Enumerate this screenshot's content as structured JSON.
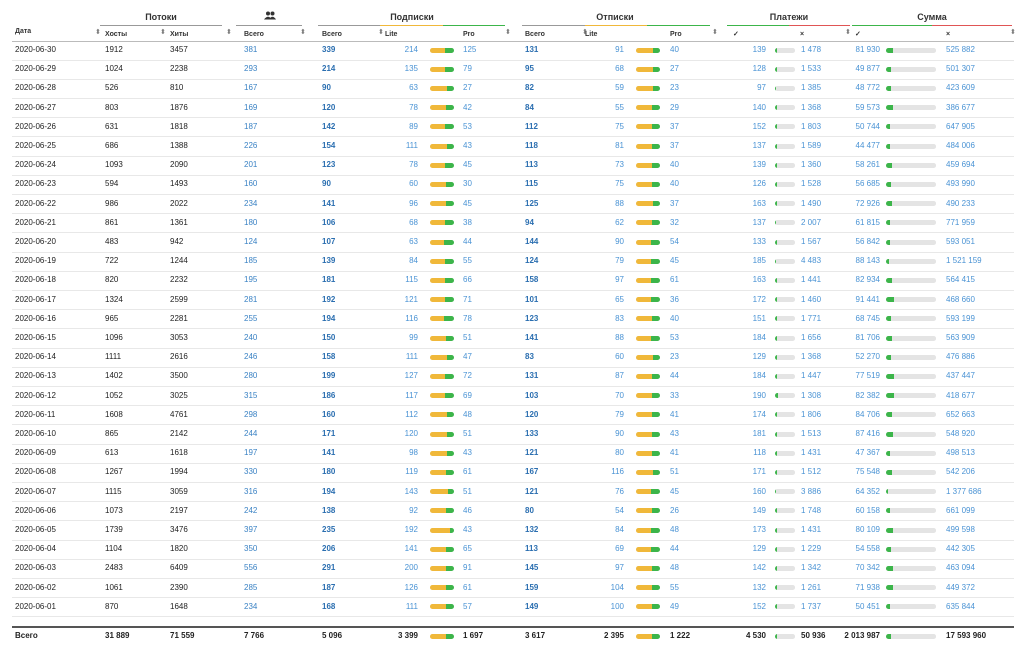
{
  "header": {
    "groups": [
      "Потоки",
      "Подписки",
      "Отписки",
      "Платежи",
      "Сумма"
    ],
    "columns": [
      "Дата",
      "Хосты",
      "Хиты",
      "Всего",
      "Всего",
      "Lite",
      "Pro",
      "Всего",
      "Lite",
      "Pro",
      "✓",
      "×",
      "✓",
      "×"
    ]
  },
  "table": {
    "rows": [
      [
        "2020-06-30",
        "1912",
        "3457",
        "381",
        "339",
        "214",
        "125",
        "131",
        "91",
        "40",
        "139",
        "1 478",
        "81 930",
        "525 882"
      ],
      [
        "2020-06-29",
        "1024",
        "2238",
        "293",
        "214",
        "135",
        "79",
        "95",
        "68",
        "27",
        "128",
        "1 533",
        "49 877",
        "501 307"
      ],
      [
        "2020-06-28",
        "526",
        "810",
        "167",
        "90",
        "63",
        "27",
        "82",
        "59",
        "23",
        "97",
        "1 385",
        "48 772",
        "423 609"
      ],
      [
        "2020-06-27",
        "803",
        "1876",
        "169",
        "120",
        "78",
        "42",
        "84",
        "55",
        "29",
        "140",
        "1 368",
        "59 573",
        "386 677"
      ],
      [
        "2020-06-26",
        "631",
        "1818",
        "187",
        "142",
        "89",
        "53",
        "112",
        "75",
        "37",
        "152",
        "1 803",
        "50 744",
        "647 905"
      ],
      [
        "2020-06-25",
        "686",
        "1388",
        "226",
        "154",
        "111",
        "43",
        "118",
        "81",
        "37",
        "137",
        "1 589",
        "44 477",
        "484 006"
      ],
      [
        "2020-06-24",
        "1093",
        "2090",
        "201",
        "123",
        "78",
        "45",
        "113",
        "73",
        "40",
        "139",
        "1 360",
        "58 261",
        "459 694"
      ],
      [
        "2020-06-23",
        "594",
        "1493",
        "160",
        "90",
        "60",
        "30",
        "115",
        "75",
        "40",
        "126",
        "1 528",
        "56 685",
        "493 990"
      ],
      [
        "2020-06-22",
        "986",
        "2022",
        "234",
        "141",
        "96",
        "45",
        "125",
        "88",
        "37",
        "163",
        "1 490",
        "72 926",
        "490 233"
      ],
      [
        "2020-06-21",
        "861",
        "1361",
        "180",
        "106",
        "68",
        "38",
        "94",
        "62",
        "32",
        "137",
        "2 007",
        "61 815",
        "771 959"
      ],
      [
        "2020-06-20",
        "483",
        "942",
        "124",
        "107",
        "63",
        "44",
        "144",
        "90",
        "54",
        "133",
        "1 567",
        "56 842",
        "593 051"
      ],
      [
        "2020-06-19",
        "722",
        "1244",
        "185",
        "139",
        "84",
        "55",
        "124",
        "79",
        "45",
        "185",
        "4 483",
        "88 143",
        "1 521 159"
      ],
      [
        "2020-06-18",
        "820",
        "2232",
        "195",
        "181",
        "115",
        "66",
        "158",
        "97",
        "61",
        "163",
        "1 441",
        "82 934",
        "564 415"
      ],
      [
        "2020-06-17",
        "1324",
        "2599",
        "281",
        "192",
        "121",
        "71",
        "101",
        "65",
        "36",
        "172",
        "1 460",
        "91 441",
        "468 660"
      ],
      [
        "2020-06-16",
        "965",
        "2281",
        "255",
        "194",
        "116",
        "78",
        "123",
        "83",
        "40",
        "151",
        "1 771",
        "68 745",
        "593 199"
      ],
      [
        "2020-06-15",
        "1096",
        "3053",
        "240",
        "150",
        "99",
        "51",
        "141",
        "88",
        "53",
        "184",
        "1 656",
        "81 706",
        "563 909"
      ],
      [
        "2020-06-14",
        "1111",
        "2616",
        "246",
        "158",
        "111",
        "47",
        "83",
        "60",
        "23",
        "129",
        "1 368",
        "52 270",
        "476 886"
      ],
      [
        "2020-06-13",
        "1402",
        "3500",
        "280",
        "199",
        "127",
        "72",
        "131",
        "87",
        "44",
        "184",
        "1 447",
        "77 519",
        "437 447"
      ],
      [
        "2020-06-12",
        "1052",
        "3025",
        "315",
        "186",
        "117",
        "69",
        "103",
        "70",
        "33",
        "190",
        "1 308",
        "82 382",
        "418 677"
      ],
      [
        "2020-06-11",
        "1608",
        "4761",
        "298",
        "160",
        "112",
        "48",
        "120",
        "79",
        "41",
        "174",
        "1 806",
        "84 706",
        "652 663"
      ],
      [
        "2020-06-10",
        "865",
        "2142",
        "244",
        "171",
        "120",
        "51",
        "133",
        "90",
        "43",
        "181",
        "1 513",
        "87 416",
        "548 920"
      ],
      [
        "2020-06-09",
        "613",
        "1618",
        "197",
        "141",
        "98",
        "43",
        "121",
        "80",
        "41",
        "118",
        "1 431",
        "47 367",
        "498 513"
      ],
      [
        "2020-06-08",
        "1267",
        "1994",
        "330",
        "180",
        "119",
        "61",
        "167",
        "116",
        "51",
        "171",
        "1 512",
        "75 548",
        "542 206"
      ],
      [
        "2020-06-07",
        "1115",
        "3059",
        "316",
        "194",
        "143",
        "51",
        "121",
        "76",
        "45",
        "160",
        "3 886",
        "64 352",
        "1 377 686"
      ],
      [
        "2020-06-06",
        "1073",
        "2197",
        "242",
        "138",
        "92",
        "46",
        "80",
        "54",
        "26",
        "149",
        "1 748",
        "60 158",
        "661 099"
      ],
      [
        "2020-06-05",
        "1739",
        "3476",
        "397",
        "235",
        "192",
        "43",
        "132",
        "84",
        "48",
        "173",
        "1 431",
        "80 109",
        "499 598"
      ],
      [
        "2020-06-04",
        "1104",
        "1820",
        "350",
        "206",
        "141",
        "65",
        "113",
        "69",
        "44",
        "129",
        "1 229",
        "54 558",
        "442 305"
      ],
      [
        "2020-06-03",
        "2483",
        "6409",
        "556",
        "291",
        "200",
        "91",
        "145",
        "97",
        "48",
        "142",
        "1 342",
        "70 342",
        "463 094"
      ],
      [
        "2020-06-02",
        "1061",
        "2390",
        "285",
        "187",
        "126",
        "61",
        "159",
        "104",
        "55",
        "132",
        "1 261",
        "71 938",
        "449 372"
      ],
      [
        "2020-06-01",
        "870",
        "1648",
        "234",
        "168",
        "111",
        "57",
        "149",
        "100",
        "49",
        "152",
        "1 737",
        "50 451",
        "635 844"
      ]
    ],
    "totals": [
      "Всего",
      "31 889",
      "71 559",
      "7 766",
      "5 096",
      "3 399",
      "1 697",
      "3 617",
      "2 395",
      "1 222",
      "4 530",
      "50 936",
      "2 013 987",
      "17 593 960"
    ]
  }
}
